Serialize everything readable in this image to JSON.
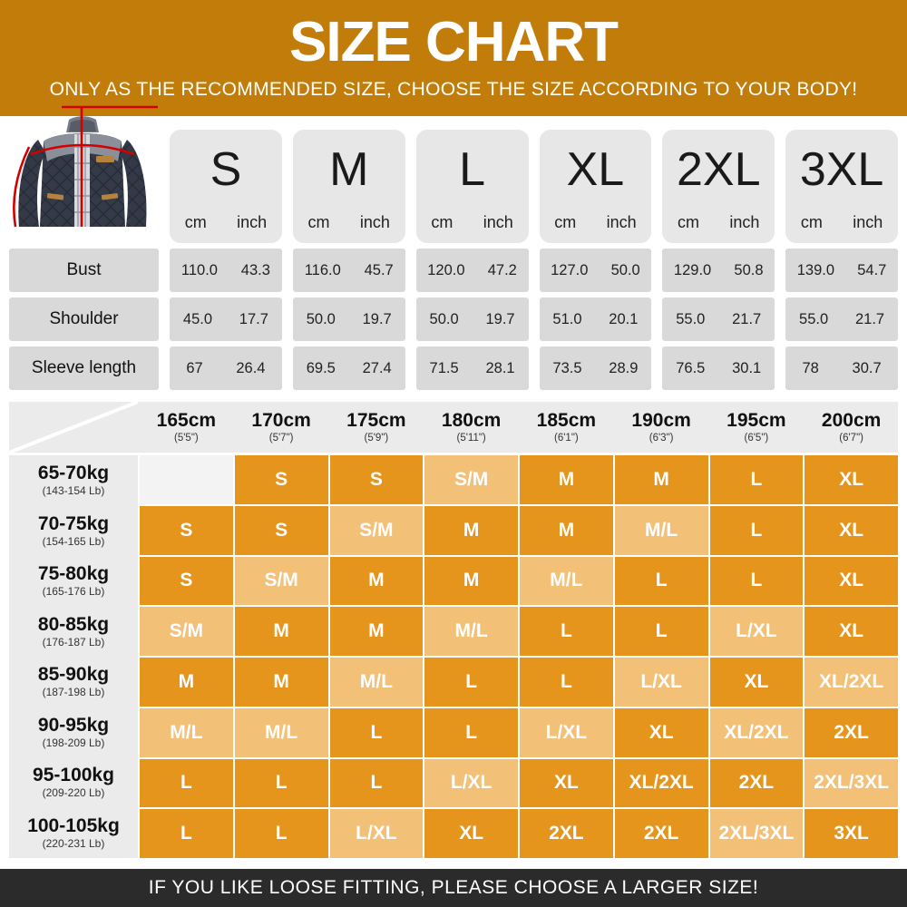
{
  "page": {
    "title": "SIZE CHART",
    "subtitle": "ONLY AS THE RECOMMENDED SIZE, CHOOSE THE SIZE ACCORDING TO YOUR BODY!",
    "footer_note": "IF YOU LIKE LOOSE FITTING, PLEASE CHOOSE A LARGER SIZE!"
  },
  "colors": {
    "header_bg": "#c17c0a",
    "cell_dark": "#e5941c",
    "cell_light": "#f2c077",
    "cell_empty": "#f3f3f3",
    "table1_cell": "#d9d9d9",
    "size_card": "#e7e7e7",
    "table2_header": "#ebebeb",
    "footer_bg": "#2b2b2b",
    "measure_line_red": "#d40000"
  },
  "jacket_icon": "quilted-jacket-with-red-measurement-lines",
  "measurement_table": {
    "sizes": [
      "S",
      "M",
      "L",
      "XL",
      "2XL",
      "3XL"
    ],
    "unit_labels": [
      "cm",
      "inch"
    ],
    "rows": [
      {
        "label": "Bust",
        "values": [
          [
            "110.0",
            "43.3"
          ],
          [
            "116.0",
            "45.7"
          ],
          [
            "120.0",
            "47.2"
          ],
          [
            "127.0",
            "50.0"
          ],
          [
            "129.0",
            "50.8"
          ],
          [
            "139.0",
            "54.7"
          ]
        ]
      },
      {
        "label": "Shoulder",
        "values": [
          [
            "45.0",
            "17.7"
          ],
          [
            "50.0",
            "19.7"
          ],
          [
            "50.0",
            "19.7"
          ],
          [
            "51.0",
            "20.1"
          ],
          [
            "55.0",
            "21.7"
          ],
          [
            "55.0",
            "21.7"
          ]
        ]
      },
      {
        "label": "Sleeve length",
        "values": [
          [
            "67",
            "26.4"
          ],
          [
            "69.5",
            "27.4"
          ],
          [
            "71.5",
            "28.1"
          ],
          [
            "73.5",
            "28.9"
          ],
          [
            "76.5",
            "30.1"
          ],
          [
            "78",
            "30.7"
          ]
        ]
      }
    ]
  },
  "size_matrix": {
    "height_columns": [
      {
        "cm": "165cm",
        "ft": "(5'5\")"
      },
      {
        "cm": "170cm",
        "ft": "(5'7\")"
      },
      {
        "cm": "175cm",
        "ft": "(5'9\")"
      },
      {
        "cm": "180cm",
        "ft": "(5'11\")"
      },
      {
        "cm": "185cm",
        "ft": "(6'1\")"
      },
      {
        "cm": "190cm",
        "ft": "(6'3\")"
      },
      {
        "cm": "195cm",
        "ft": "(6'5\")"
      },
      {
        "cm": "200cm",
        "ft": "(6'7\")"
      }
    ],
    "rows": [
      {
        "weight": "65-70kg",
        "lb": "(143-154 Lb)",
        "cells": [
          {
            "size": "",
            "tone": "empty"
          },
          {
            "size": "S",
            "tone": "dark"
          },
          {
            "size": "S",
            "tone": "dark"
          },
          {
            "size": "S/M",
            "tone": "light"
          },
          {
            "size": "M",
            "tone": "dark"
          },
          {
            "size": "M",
            "tone": "dark"
          },
          {
            "size": "L",
            "tone": "dark"
          },
          {
            "size": "XL",
            "tone": "dark"
          }
        ]
      },
      {
        "weight": "70-75kg",
        "lb": "(154-165 Lb)",
        "cells": [
          {
            "size": "S",
            "tone": "dark"
          },
          {
            "size": "S",
            "tone": "dark"
          },
          {
            "size": "S/M",
            "tone": "light"
          },
          {
            "size": "M",
            "tone": "dark"
          },
          {
            "size": "M",
            "tone": "dark"
          },
          {
            "size": "M/L",
            "tone": "light"
          },
          {
            "size": "L",
            "tone": "dark"
          },
          {
            "size": "XL",
            "tone": "dark"
          }
        ]
      },
      {
        "weight": "75-80kg",
        "lb": "(165-176 Lb)",
        "cells": [
          {
            "size": "S",
            "tone": "dark"
          },
          {
            "size": "S/M",
            "tone": "light"
          },
          {
            "size": "M",
            "tone": "dark"
          },
          {
            "size": "M",
            "tone": "dark"
          },
          {
            "size": "M/L",
            "tone": "light"
          },
          {
            "size": "L",
            "tone": "dark"
          },
          {
            "size": "L",
            "tone": "dark"
          },
          {
            "size": "XL",
            "tone": "dark"
          }
        ]
      },
      {
        "weight": "80-85kg",
        "lb": "(176-187 Lb)",
        "cells": [
          {
            "size": "S/M",
            "tone": "light"
          },
          {
            "size": "M",
            "tone": "dark"
          },
          {
            "size": "M",
            "tone": "dark"
          },
          {
            "size": "M/L",
            "tone": "light"
          },
          {
            "size": "L",
            "tone": "dark"
          },
          {
            "size": "L",
            "tone": "dark"
          },
          {
            "size": "L/XL",
            "tone": "light"
          },
          {
            "size": "XL",
            "tone": "dark"
          }
        ]
      },
      {
        "weight": "85-90kg",
        "lb": "(187-198 Lb)",
        "cells": [
          {
            "size": "M",
            "tone": "dark"
          },
          {
            "size": "M",
            "tone": "dark"
          },
          {
            "size": "M/L",
            "tone": "light"
          },
          {
            "size": "L",
            "tone": "dark"
          },
          {
            "size": "L",
            "tone": "dark"
          },
          {
            "size": "L/XL",
            "tone": "light"
          },
          {
            "size": "XL",
            "tone": "dark"
          },
          {
            "size": "XL/2XL",
            "tone": "light"
          }
        ]
      },
      {
        "weight": "90-95kg",
        "lb": "(198-209 Lb)",
        "cells": [
          {
            "size": "M/L",
            "tone": "light"
          },
          {
            "size": "M/L",
            "tone": "light"
          },
          {
            "size": "L",
            "tone": "dark"
          },
          {
            "size": "L",
            "tone": "dark"
          },
          {
            "size": "L/XL",
            "tone": "light"
          },
          {
            "size": "XL",
            "tone": "dark"
          },
          {
            "size": "XL/2XL",
            "tone": "light"
          },
          {
            "size": "2XL",
            "tone": "dark"
          }
        ]
      },
      {
        "weight": "95-100kg",
        "lb": "(209-220 Lb)",
        "cells": [
          {
            "size": "L",
            "tone": "dark"
          },
          {
            "size": "L",
            "tone": "dark"
          },
          {
            "size": "L",
            "tone": "dark"
          },
          {
            "size": "L/XL",
            "tone": "light"
          },
          {
            "size": "XL",
            "tone": "dark"
          },
          {
            "size": "XL/2XL",
            "tone": "dark"
          },
          {
            "size": "2XL",
            "tone": "dark"
          },
          {
            "size": "2XL/3XL",
            "tone": "light"
          }
        ]
      },
      {
        "weight": "100-105kg",
        "lb": "(220-231 Lb)",
        "cells": [
          {
            "size": "L",
            "tone": "dark"
          },
          {
            "size": "L",
            "tone": "dark"
          },
          {
            "size": "L/XL",
            "tone": "light"
          },
          {
            "size": "XL",
            "tone": "dark"
          },
          {
            "size": "2XL",
            "tone": "dark"
          },
          {
            "size": "2XL",
            "tone": "dark"
          },
          {
            "size": "2XL/3XL",
            "tone": "light"
          },
          {
            "size": "3XL",
            "tone": "dark"
          }
        ]
      }
    ]
  },
  "chart_data": [
    {
      "type": "table",
      "title": "Garment measurements",
      "column_headers": [
        "S",
        "M",
        "L",
        "XL",
        "2XL",
        "3XL"
      ],
      "sub_columns": [
        "cm",
        "inch"
      ],
      "row_headers": [
        "Bust",
        "Shoulder",
        "Sleeve length"
      ],
      "rows_cm": [
        [
          110.0,
          116.0,
          120.0,
          127.0,
          129.0,
          139.0
        ],
        [
          45.0,
          50.0,
          50.0,
          51.0,
          55.0,
          55.0
        ],
        [
          67,
          69.5,
          71.5,
          73.5,
          76.5,
          78
        ]
      ],
      "rows_inch": [
        [
          43.3,
          45.7,
          47.2,
          50.0,
          50.8,
          54.7
        ],
        [
          17.7,
          19.7,
          19.7,
          20.1,
          21.7,
          21.7
        ],
        [
          26.4,
          27.4,
          28.1,
          28.9,
          30.1,
          30.7
        ]
      ]
    },
    {
      "type": "table",
      "title": "Recommended size by height and weight",
      "column_headers": [
        "165cm (5'5\")",
        "170cm (5'7\")",
        "175cm (5'9\")",
        "180cm (5'11\")",
        "185cm (6'1\")",
        "190cm (6'3\")",
        "195cm (6'5\")",
        "200cm (6'7\")"
      ],
      "row_headers": [
        "65-70kg (143-154 Lb)",
        "70-75kg (154-165 Lb)",
        "75-80kg (165-176 Lb)",
        "80-85kg (176-187 Lb)",
        "85-90kg (187-198 Lb)",
        "90-95kg (198-209 Lb)",
        "95-100kg (209-220 Lb)",
        "100-105kg (220-231 Lb)"
      ],
      "cells": [
        [
          "",
          "S",
          "S",
          "S/M",
          "M",
          "M",
          "L",
          "XL"
        ],
        [
          "S",
          "S",
          "S/M",
          "M",
          "M",
          "M/L",
          "L",
          "XL"
        ],
        [
          "S",
          "S/M",
          "M",
          "M",
          "M/L",
          "L",
          "L",
          "XL"
        ],
        [
          "S/M",
          "M",
          "M",
          "M/L",
          "L",
          "L",
          "L/XL",
          "XL"
        ],
        [
          "M",
          "M",
          "M/L",
          "L",
          "L",
          "L/XL",
          "XL",
          "XL/2XL"
        ],
        [
          "M/L",
          "M/L",
          "L",
          "L",
          "L/XL",
          "XL",
          "XL/2XL",
          "2XL"
        ],
        [
          "L",
          "L",
          "L",
          "L/XL",
          "XL",
          "XL/2XL",
          "2XL",
          "2XL/3XL"
        ],
        [
          "L",
          "L",
          "L/XL",
          "XL",
          "2XL",
          "2XL",
          "2XL/3XL",
          "3XL"
        ]
      ]
    }
  ]
}
